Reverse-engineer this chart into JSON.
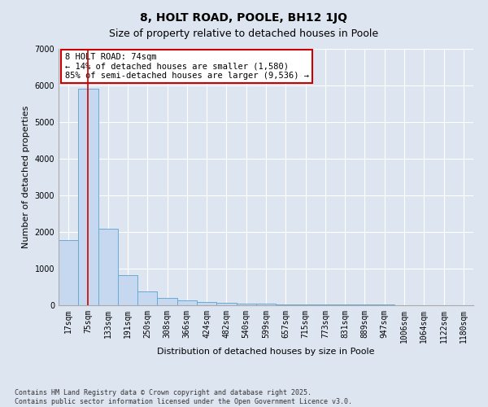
{
  "title": "8, HOLT ROAD, POOLE, BH12 1JQ",
  "subtitle": "Size of property relative to detached houses in Poole",
  "xlabel": "Distribution of detached houses by size in Poole",
  "ylabel": "Number of detached properties",
  "categories": [
    "17sqm",
    "75sqm",
    "133sqm",
    "191sqm",
    "250sqm",
    "308sqm",
    "366sqm",
    "424sqm",
    "482sqm",
    "540sqm",
    "599sqm",
    "657sqm",
    "715sqm",
    "773sqm",
    "831sqm",
    "889sqm",
    "947sqm",
    "1006sqm",
    "1064sqm",
    "1122sqm",
    "1180sqm"
  ],
  "values": [
    1780,
    5900,
    2080,
    820,
    380,
    200,
    130,
    80,
    60,
    50,
    40,
    30,
    25,
    20,
    18,
    15,
    12,
    10,
    8,
    7,
    6
  ],
  "bar_color": "#c5d8f0",
  "bar_edge_color": "#6aaad4",
  "vline_x": 1,
  "vline_color": "#cc0000",
  "annotation_text": "8 HOLT ROAD: 74sqm\n← 14% of detached houses are smaller (1,580)\n85% of semi-detached houses are larger (9,536) →",
  "annotation_box_color": "#ffffff",
  "annotation_box_edge_color": "#cc0000",
  "ylim": [
    0,
    7000
  ],
  "yticks": [
    0,
    1000,
    2000,
    3000,
    4000,
    5000,
    6000,
    7000
  ],
  "background_color": "#dde5f0",
  "grid_color": "#ffffff",
  "footer_text": "Contains HM Land Registry data © Crown copyright and database right 2025.\nContains public sector information licensed under the Open Government Licence v3.0.",
  "title_fontsize": 10,
  "subtitle_fontsize": 9,
  "ylabel_fontsize": 8,
  "xlabel_fontsize": 8,
  "annotation_fontsize": 7.5,
  "tick_fontsize": 7,
  "footer_fontsize": 6
}
